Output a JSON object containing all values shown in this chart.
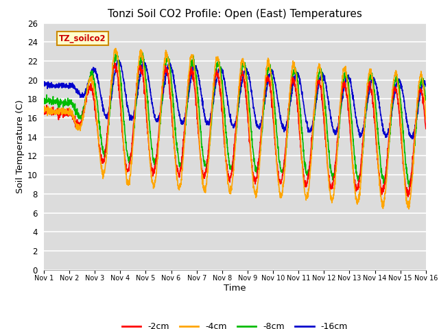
{
  "title": "Tonzi Soil CO2 Profile: Open (East) Temperatures",
  "xlabel": "Time",
  "ylabel": "Soil Temperature (C)",
  "ylim": [
    0,
    26
  ],
  "yticks": [
    0,
    2,
    4,
    6,
    8,
    10,
    12,
    14,
    16,
    18,
    20,
    22,
    24,
    26
  ],
  "legend_label": "TZ_soilco2",
  "series": [
    {
      "label": "-2cm",
      "color": "#FF0000"
    },
    {
      "label": "-4cm",
      "color": "#FFA500"
    },
    {
      "label": "-8cm",
      "color": "#00BB00"
    },
    {
      "label": "-16cm",
      "color": "#0000CC"
    }
  ],
  "plot_bg_color": "#DCDCDC",
  "fig_bg_color": "#FFFFFF",
  "grid_color": "#FFFFFF",
  "n_days": 15,
  "points_per_day": 144
}
